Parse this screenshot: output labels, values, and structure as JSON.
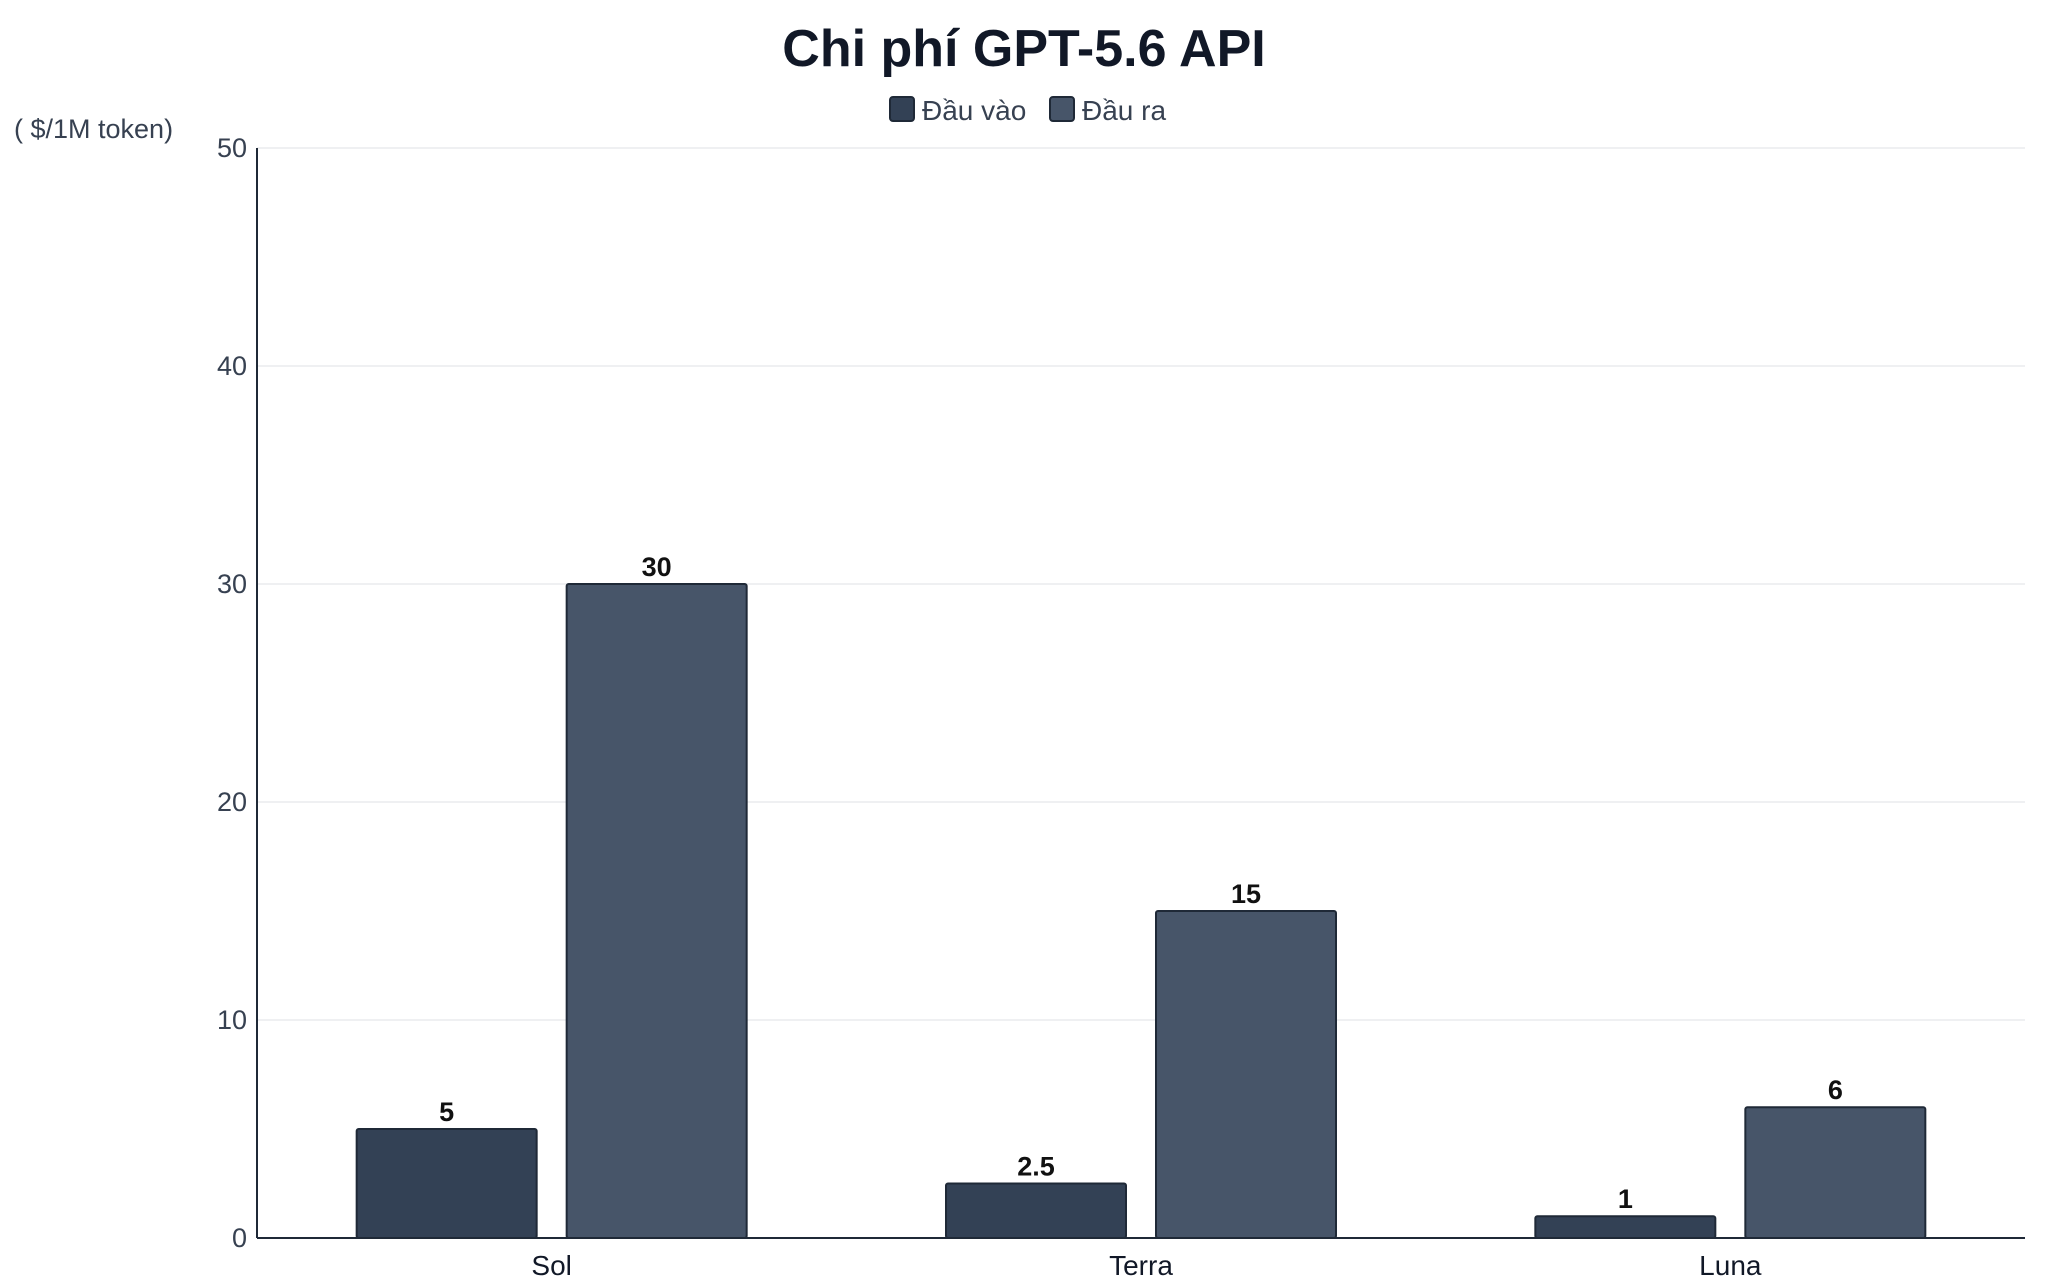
{
  "chart_data": {
    "type": "bar",
    "title": "Chi phí GPT-5.6 API",
    "unit_label": "( $/1M token)",
    "categories": [
      "Sol",
      "Terra",
      "Luna"
    ],
    "series": [
      {
        "name": "Đầu vào",
        "values": [
          5,
          2.5,
          1
        ],
        "color": "#334155"
      },
      {
        "name": "Đầu ra",
        "values": [
          30,
          15,
          6
        ],
        "color": "#475569"
      }
    ],
    "ylim": [
      0,
      50
    ],
    "yticks": [
      "0",
      "10",
      "20",
      "30",
      "40",
      "50"
    ],
    "grid": true,
    "legend_position": "top-center",
    "value_labels": [
      [
        "5",
        "2.5",
        "1"
      ],
      [
        "30",
        "15",
        "6"
      ]
    ]
  }
}
